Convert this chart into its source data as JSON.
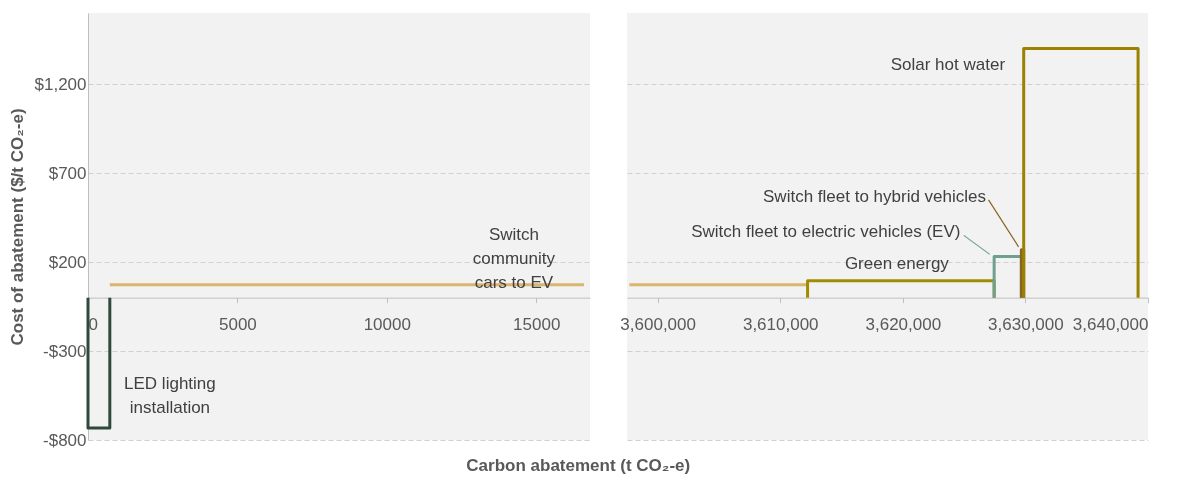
{
  "chart_data": [
    {
      "type": "line",
      "ylabel": "Cost of abatement ($/t CO₂-e)",
      "xlabel": "Carbon abatement (t CO₂-e)",
      "xlim": [
        0,
        16800
      ],
      "xticks": [
        0,
        5000,
        10000,
        15000
      ],
      "ylim": [
        -800,
        1600
      ],
      "yticks": [
        {
          "value": -800,
          "label": "-$800"
        },
        {
          "value": -300,
          "label": "-$300"
        },
        {
          "value": 200,
          "label": "$200"
        },
        {
          "value": 700,
          "label": "$700"
        },
        {
          "value": 1200,
          "label": "$1,200"
        }
      ],
      "grid": "y",
      "series": [
        {
          "name": "LED lighting installation",
          "color": "#2f4a3c",
          "x": [
            0,
            0,
            730,
            730
          ],
          "values": [
            0,
            -733,
            -733,
            0
          ]
        },
        {
          "name": "Switch community cars to EV",
          "color": "#d9b56e",
          "x": [
            730,
            16600
          ],
          "values": [
            72,
            72
          ]
        }
      ]
    },
    {
      "type": "line",
      "xlim": [
        3597500,
        3640000
      ],
      "xticks": [
        {
          "value": 3600000,
          "label": "3,600,000"
        },
        {
          "value": 3610000,
          "label": "3,610,000"
        },
        {
          "value": 3620000,
          "label": "3,620,000"
        },
        {
          "value": 3630000,
          "label": "3,630,000"
        },
        {
          "value": 3640000,
          "label": "3,640,000"
        }
      ],
      "ylim": [
        -800,
        1600
      ],
      "yticks": [
        -800,
        -300,
        200,
        700,
        1200
      ],
      "grid": "y",
      "tick_labels": "x",
      "series": [
        {
          "color": "#d9b56e",
          "x": [
            3597700,
            3612230
          ],
          "values": [
            72,
            72
          ]
        },
        {
          "name": "Green energy",
          "color": "#a08c00",
          "x": [
            3612230,
            3612230,
            3627450,
            3627450
          ],
          "values": [
            0,
            95,
            95,
            0
          ]
        },
        {
          "name": "Switch fleet to electric vehicles (EV)",
          "color": "#6f9f8f",
          "x": [
            3627450,
            3627450,
            3629670,
            3629670
          ],
          "values": [
            0,
            232,
            232,
            0
          ]
        },
        {
          "name": "Switch fleet to hybrid vehicles",
          "color": "#8b6420",
          "x": [
            3629670,
            3629670,
            3629860,
            3629860
          ],
          "values": [
            0,
            269,
            269,
            0
          ]
        },
        {
          "name": "Solar hot water",
          "color": "#9a8200",
          "x": [
            3629860,
            3629860,
            3639190,
            3639190
          ],
          "values": [
            0,
            1400,
            1400,
            0
          ]
        }
      ]
    }
  ]
}
